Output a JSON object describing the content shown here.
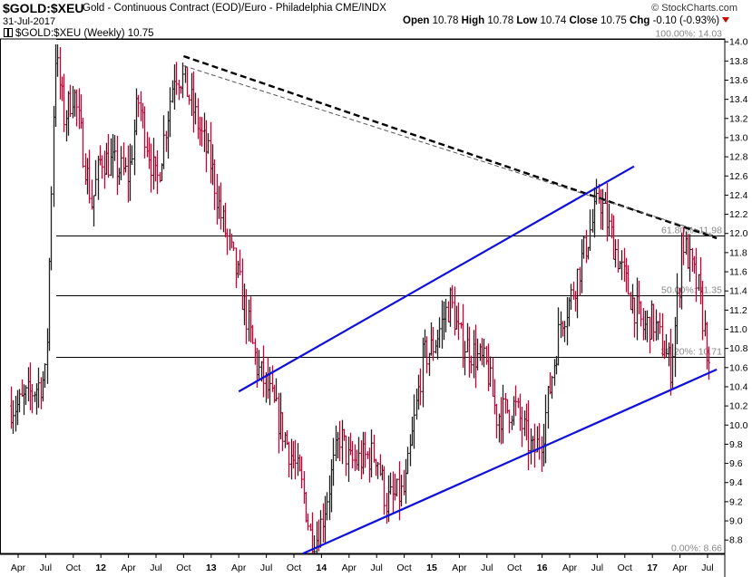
{
  "header": {
    "symbol": "$GOLD:$XEU",
    "description": "Gold - Continuous Contract (EOD)/Euro - Philadelphia CME/INDX",
    "date": "31-Jul-2017",
    "open_label": "Open",
    "open": "10.78",
    "high_label": "High",
    "high": "10.78",
    "low_label": "Low",
    "low": "10.74",
    "close_label": "Close",
    "close": "10.75",
    "chg_label": "Chg",
    "chg": "-0.10 (-0.93%)",
    "brand": "© StockCharts.com",
    "legend": "$GOLD:$XEU (Weekly) 10.75"
  },
  "colors": {
    "up": "#222222",
    "down": "#cc0033",
    "trend": "#1010dd",
    "dash": "#000000"
  },
  "chart_data": {
    "type": "line",
    "subtype": "ohlc-bars",
    "title": "$GOLD:$XEU (Weekly) 10.75",
    "x": [
      "2011-04",
      "2011-07",
      "2011-10",
      "2012-01",
      "2012-04",
      "2012-07",
      "2012-10",
      "2013-01",
      "2013-04",
      "2013-07",
      "2013-10",
      "2014-01",
      "2014-04",
      "2014-07",
      "2014-10",
      "2015-01",
      "2015-04",
      "2015-07",
      "2015-10",
      "2016-01",
      "2016-04",
      "2016-07",
      "2016-10",
      "2017-01",
      "2017-04",
      "2017-07"
    ],
    "series": [
      {
        "values": [
          10.2,
          10.5,
          13.5,
          12.8,
          12.6,
          12.5,
          13.6,
          12.7,
          11.5,
          10.4,
          9.6,
          9.0,
          9.6,
          9.7,
          9.3,
          10.8,
          10.9,
          10.6,
          10.2,
          9.9,
          11.3,
          12.3,
          11.5,
          11.1,
          11.6,
          10.75
        ]
      }
    ],
    "ylim": [
      8.66,
      14.03
    ],
    "yticks": [
      "8.8",
      "9.0",
      "9.2",
      "9.4",
      "9.6",
      "9.8",
      "10.0",
      "10.2",
      "10.4",
      "10.6",
      "10.8",
      "11.0",
      "11.2",
      "11.4",
      "11.6",
      "11.8",
      "12.0",
      "12.2",
      "12.4",
      "12.6",
      "12.8",
      "13.0",
      "13.2",
      "13.4",
      "13.6",
      "13.8",
      "14.0"
    ],
    "xticks": [
      "Apr",
      "Jul",
      "Oct",
      "12",
      "Apr",
      "Jul",
      "Oct",
      "13",
      "Apr",
      "Jul",
      "Oct",
      "14",
      "Apr",
      "Jul",
      "Oct",
      "15",
      "Apr",
      "Jul",
      "Oct",
      "16",
      "Apr",
      "Jul",
      "Oct",
      "17",
      "Apr",
      "Jul"
    ],
    "fib_levels": [
      {
        "label": "100.00%: 14.03",
        "value": 14.03
      },
      {
        "label": "61.80%: 11.98",
        "value": 11.98
      },
      {
        "label": "50.00%: 11.35",
        "value": 11.35
      },
      {
        "label": "38.20%: 10.71",
        "value": 10.71
      },
      {
        "label": "0.00%: 8.66",
        "value": 8.66
      }
    ],
    "trendlines": [
      {
        "style": "dashed",
        "from": [
          "2012-10",
          13.85
        ],
        "to": [
          "2017-08",
          11.95
        ]
      },
      {
        "style": "dashed-thin",
        "from": [
          "2012-10",
          13.75
        ],
        "to": [
          "2017-08",
          11.97
        ]
      },
      {
        "style": "solid",
        "from": [
          "2013-04",
          10.35
        ],
        "to": [
          "2016-11",
          12.7
        ]
      },
      {
        "style": "solid",
        "from": [
          "2013-11",
          8.66
        ],
        "to": [
          "2017-08",
          10.58
        ]
      }
    ],
    "grid": false
  }
}
